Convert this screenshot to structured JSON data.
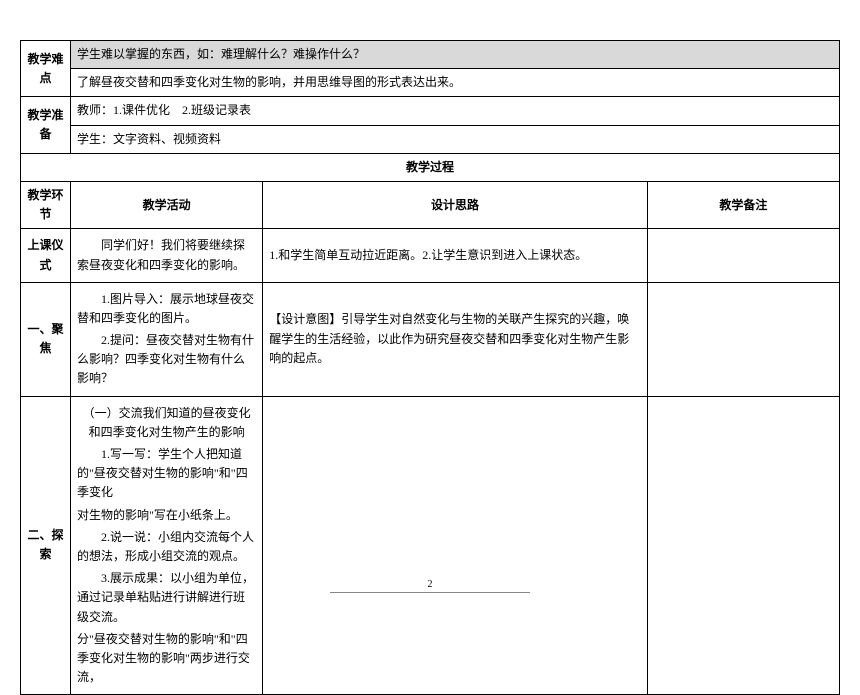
{
  "difficulty": {
    "label": "教学难点",
    "highlighted": "学生难以掌握的东西，如：难理解什么？难操作什么？",
    "content": "了解昼夜交替和四季变化对生物的影响，并用思维导图的形式表达出来。"
  },
  "preparation": {
    "label": "教学准备",
    "teacher": "教师：1.课件优化　2.班级记录表",
    "student": "学生：文字资料、视频资料"
  },
  "process": {
    "title": "教学过程",
    "headers": {
      "env": "教学环节",
      "activity": "教学活动",
      "design": "设计思路",
      "notes": "教学备注"
    }
  },
  "rows": {
    "ceremony": {
      "label": "上课仪式",
      "activity": "同学们好！我们将要继续探索昼夜变化和四季变化的影响。",
      "design": "1.和学生简单互动拉近距离。2.让学生意识到进入上课状态。"
    },
    "focus": {
      "label": "一、聚焦",
      "activity1": "1.图片导入：展示地球昼夜交替和四季变化的图片。",
      "activity2": "2.提问：昼夜交替对生物有什么影响？四季变化对生物有什么影响？",
      "design": "【设计意图】引导学生对自然变化与生物的关联产生探究的兴趣，唤醒学生的生活经验，以此作为研究昼夜交替和四季变化对生物产生影响的起点。"
    },
    "explore": {
      "label": "二、探索",
      "title": "（一）交流我们知道的昼夜变化和四季变化对生物产生的影响",
      "line1a": "1.写一写：学生个人把知道的\"昼夜交替对生物的影响\"和\"四季变化",
      "line1b": "对生物的影响\"写在小纸条上。",
      "line2": "2.说一说：小组内交流每个人的想法，形成小组交流的观点。",
      "line3": "3.展示成果：以小组为单位，通过记录单粘贴进行讲解进行班级交流。",
      "line4": "分\"昼夜交替对生物的影响\"和\"四季变化对生物的影响\"两步进行交流，"
    }
  },
  "pageNumber": "2",
  "colors": {
    "highlight": "#d9d9d9",
    "border": "#000000",
    "background": "#ffffff"
  },
  "fonts": {
    "body_size": 12,
    "header_size": 13,
    "pagenum_size": 10
  }
}
